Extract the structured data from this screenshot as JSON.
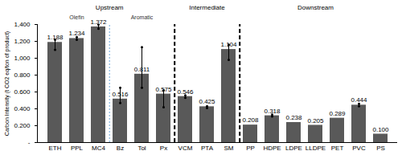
{
  "chart_data": {
    "type": "bar",
    "y_label": "Carbon Intensity (t CO2 eq/ton of product)",
    "categories": [
      "ETH",
      "PPL",
      "MC4",
      "Bz",
      "Tol",
      "Px",
      "VCM",
      "PTA",
      "SM",
      "PP",
      "HDPE",
      "LDPE",
      "LLDPE",
      "PET",
      "PVC",
      "PS"
    ],
    "values": [
      1.188,
      1.234,
      1.372,
      0.516,
      0.811,
      0.575,
      0.546,
      0.425,
      1.104,
      0.208,
      0.318,
      0.238,
      0.205,
      0.289,
      0.444,
      0.1
    ],
    "value_labels": [
      "1.188",
      "1.234",
      "1.372",
      "0.516",
      "0.811",
      "0.575",
      "0.546",
      "0.425",
      "1.104",
      "0.208",
      "0.318",
      "0.238",
      "0.205",
      "0.289",
      "0.444",
      "0.100"
    ],
    "error_low": [
      1.1,
      1.22,
      1.35,
      0.47,
      0.65,
      0.42,
      0.53,
      0.41,
      0.98,
      null,
      0.31,
      null,
      null,
      null,
      0.43,
      null
    ],
    "error_high": [
      1.22,
      1.25,
      1.4,
      0.65,
      1.13,
      0.62,
      0.56,
      0.43,
      1.16,
      null,
      0.33,
      null,
      null,
      null,
      0.46,
      null
    ],
    "groups": [
      {
        "name": "Upstream",
        "categories": [
          "ETH",
          "PPL",
          "MC4",
          "Bz",
          "Tol",
          "Px"
        ],
        "subgroups": [
          {
            "name": "Olefin",
            "categories": [
              "ETH",
              "PPL",
              "MC4"
            ]
          },
          {
            "name": "Aromatic",
            "categories": [
              "Bz",
              "Tol",
              "Px"
            ]
          }
        ]
      },
      {
        "name": "Intermediate",
        "categories": [
          "VCM",
          "PTA",
          "SM"
        ]
      },
      {
        "name": "Downstream",
        "categories": [
          "PP",
          "HDPE",
          "LDPE",
          "LLDPE",
          "PET",
          "PVC",
          "PS"
        ]
      }
    ],
    "color": "#595959",
    "ylim": [
      0,
      1.4
    ],
    "yticks": [
      {
        "value": 0,
        "label": "-"
      },
      {
        "value": 0.2,
        "label": "0.200"
      },
      {
        "value": 0.4,
        "label": "0.400"
      },
      {
        "value": 0.6,
        "label": "0.600"
      },
      {
        "value": 0.8,
        "label": "0.800"
      },
      {
        "value": 1.0,
        "label": "1,000"
      },
      {
        "value": 1.2,
        "label": "1,200"
      },
      {
        "value": 1.4,
        "label": "1,400"
      }
    ],
    "data_labels": true,
    "grid": false
  }
}
